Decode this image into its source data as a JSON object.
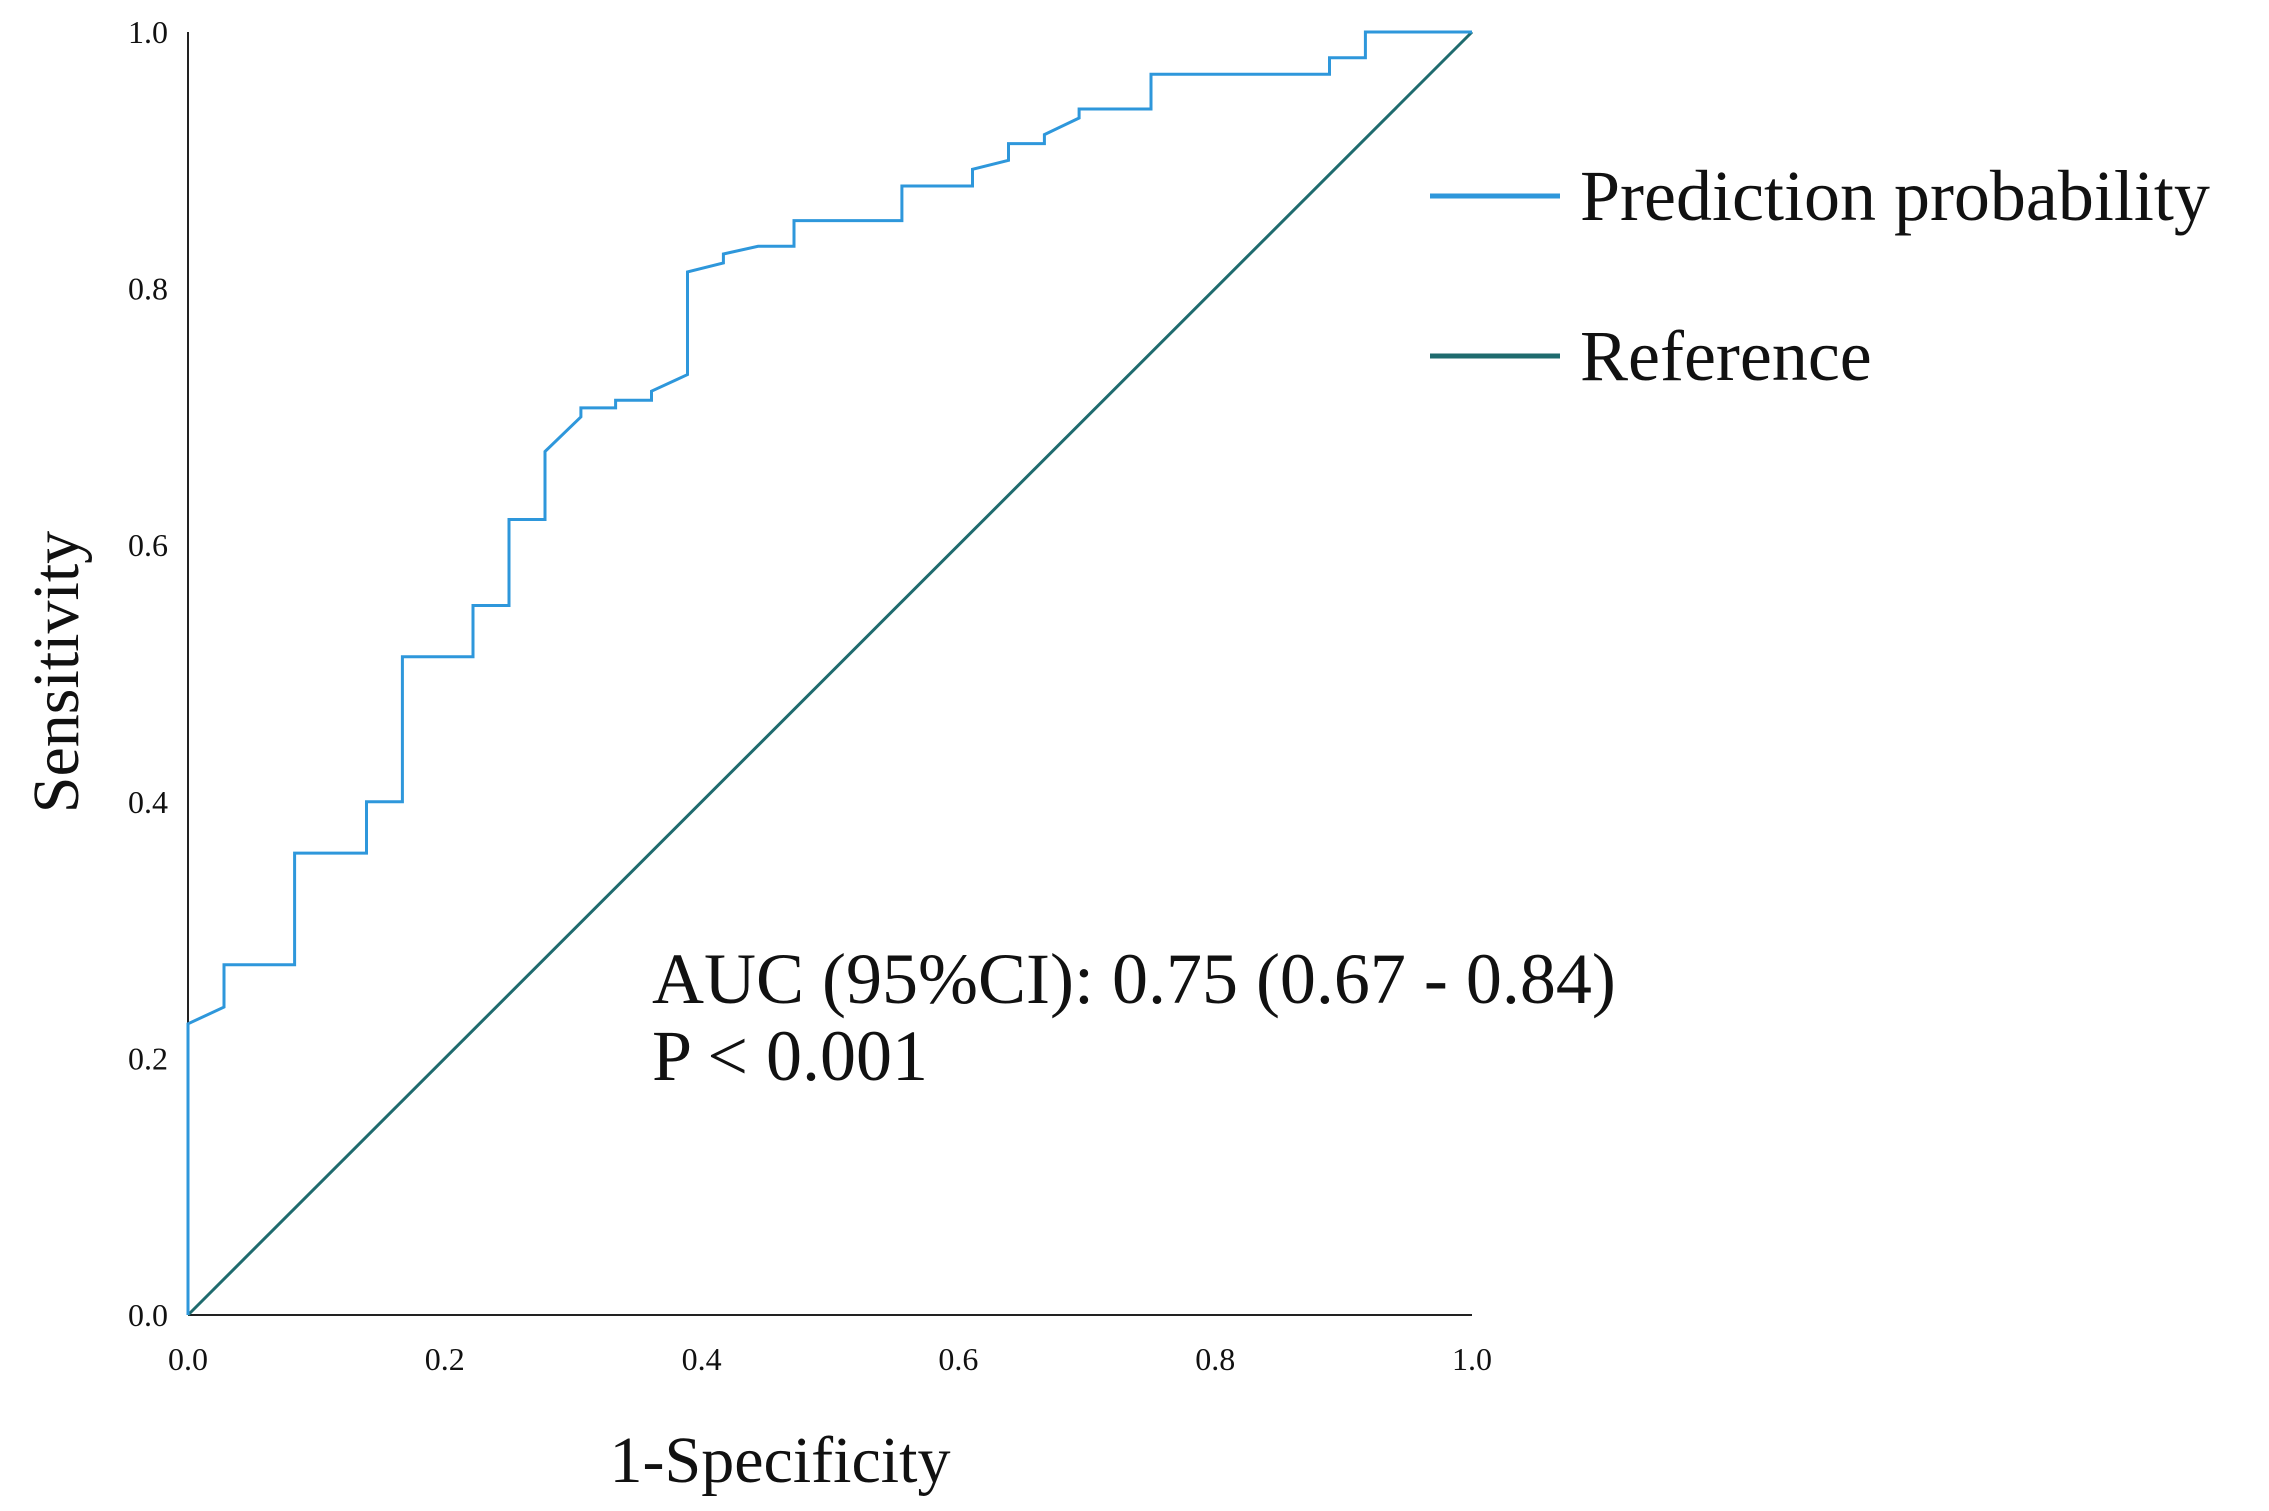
{
  "chart_data": {
    "type": "line",
    "title": "",
    "xlabel": "1-Specificity",
    "ylabel": "Sensitivity",
    "xlim": [
      0,
      1
    ],
    "ylim": [
      0,
      1
    ],
    "grid": false,
    "legend_position": "top-right",
    "x_ticks": [
      "0.0",
      "0.2",
      "0.4",
      "0.6",
      "0.8",
      "1.0"
    ],
    "y_ticks": [
      "0.0",
      "0.2",
      "0.4",
      "0.6",
      "0.8",
      "1.0"
    ],
    "x_tick_values": [
      0,
      0.2,
      0.4,
      0.6,
      0.8,
      1.0
    ],
    "y_tick_values": [
      0,
      0.2,
      0.4,
      0.6,
      0.8,
      1.0
    ],
    "series": [
      {
        "name": "Prediction probability",
        "color": "#2E97DB",
        "step": true,
        "x": [
          0,
          0,
          0.028,
          0.028,
          0.083,
          0.083,
          0.139,
          0.139,
          0.167,
          0.167,
          0.222,
          0.222,
          0.25,
          0.25,
          0.278,
          0.278,
          0.306,
          0.306,
          0.333,
          0.333,
          0.361,
          0.361,
          0.389,
          0.389,
          0.417,
          0.417,
          0.444,
          0.444,
          0.472,
          0.472,
          0.556,
          0.556,
          0.611,
          0.611,
          0.639,
          0.639,
          0.667,
          0.667,
          0.694,
          0.694,
          0.75,
          0.75,
          0.889,
          0.889,
          0.917,
          0.917,
          1.0
        ],
        "y": [
          0,
          0.227,
          0.24,
          0.273,
          0.273,
          0.36,
          0.36,
          0.4,
          0.4,
          0.513,
          0.513,
          0.553,
          0.553,
          0.62,
          0.62,
          0.673,
          0.7,
          0.707,
          0.707,
          0.713,
          0.713,
          0.72,
          0.733,
          0.813,
          0.82,
          0.827,
          0.833,
          0.833,
          0.833,
          0.853,
          0.853,
          0.88,
          0.88,
          0.893,
          0.9,
          0.913,
          0.913,
          0.92,
          0.933,
          0.94,
          0.94,
          0.967,
          0.967,
          0.98,
          0.98,
          1.0,
          1.0
        ]
      },
      {
        "name": "Reference",
        "color": "#1F6B6E",
        "step": false,
        "x": [
          0,
          1
        ],
        "y": [
          0,
          1
        ]
      }
    ],
    "annotations": [
      "AUC (95%CI): 0.75 (0.67 - 0.84)",
      "P < 0.001"
    ]
  }
}
